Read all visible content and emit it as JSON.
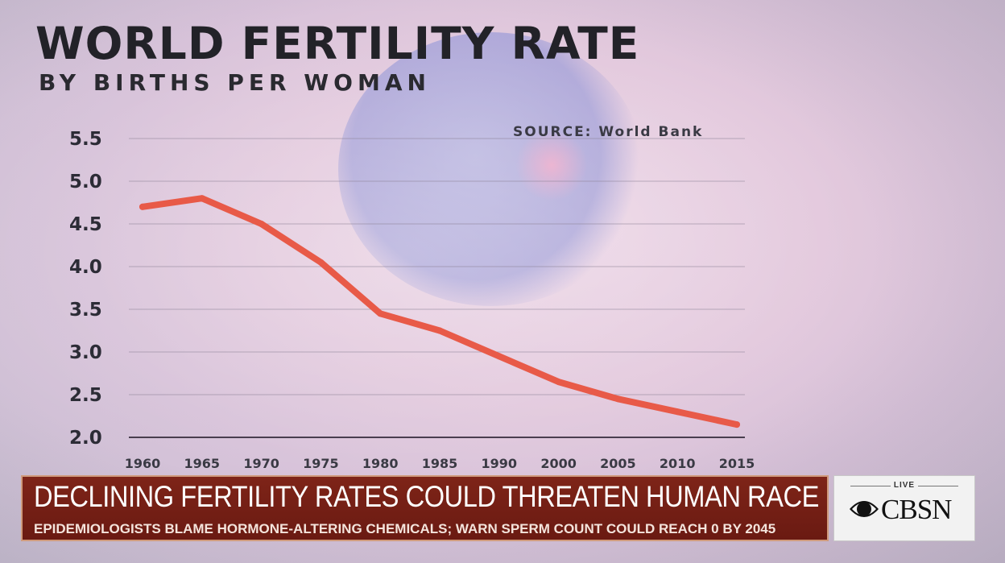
{
  "chart_data": {
    "type": "line",
    "title": "WORLD FERTILITY RATE",
    "subtitle": "BY BIRTHS PER WOMAN",
    "source": "SOURCE: World Bank",
    "xlabel": "",
    "ylabel": "",
    "x": [
      "1960",
      "1965",
      "1970",
      "1975",
      "1980",
      "1985",
      "1990",
      "2000",
      "2005",
      "2010",
      "2015"
    ],
    "series": [
      {
        "values": [
          4.7,
          4.8,
          4.5,
          4.05,
          3.45,
          3.25,
          2.95,
          2.65,
          2.45,
          2.3,
          2.15
        ]
      }
    ],
    "y_ticks": [
      "5.5",
      "5.0",
      "4.5",
      "4.0",
      "3.5",
      "3.0",
      "2.5",
      "2.0"
    ],
    "ylim": [
      2.0,
      5.5
    ],
    "grid": true,
    "line_color": "#e85a48"
  },
  "banner": {
    "headline": "DECLINING FERTILITY RATES COULD THREATEN HUMAN RACE",
    "subheadline": "EPIDEMIOLOGISTS BLAME HORMONE-ALTERING CHEMICALS; WARN SPERM COUNT COULD REACH 0 BY 2045"
  },
  "logo": {
    "live": "LIVE",
    "brand": "CBSN"
  }
}
